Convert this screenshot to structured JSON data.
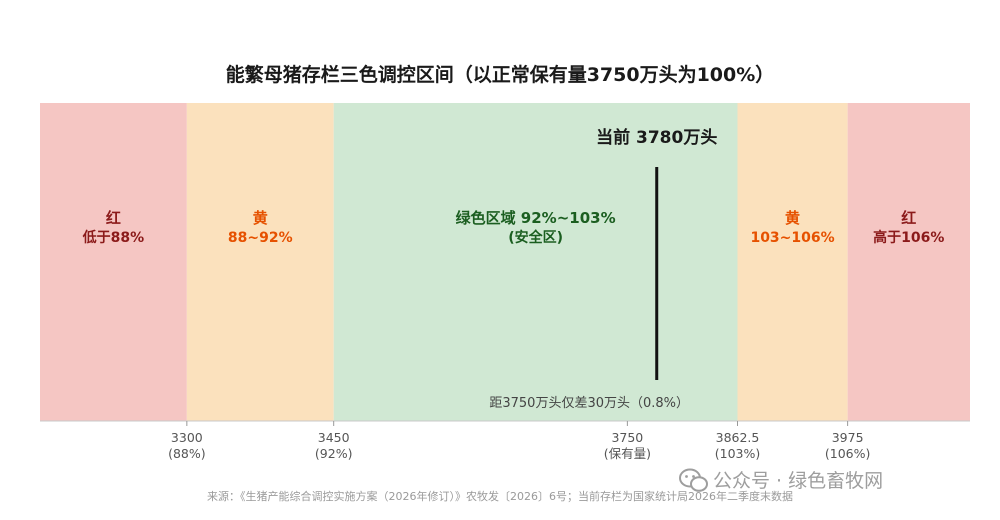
{
  "chart_data": {
    "type": "bar",
    "title": "能繁母猪存栏三色调控区间（以正常保有量3750万头为100%）",
    "xlim": [
      3150,
      4100
    ],
    "zones": [
      {
        "from": 3150,
        "to": 3300,
        "color": "#f5c6c3",
        "text_color": "#8b1a1a",
        "name": "红",
        "range": "低于88%"
      },
      {
        "from": 3300,
        "to": 3450,
        "color": "#fbe1bd",
        "text_color": "#e65100",
        "name": "黄",
        "range": "88~92%"
      },
      {
        "from": 3450,
        "to": 3862.5,
        "color": "#d0e8d3",
        "text_color": "#1b5e20",
        "name": "绿色区域 92%~103%",
        "range": "(安全区)"
      },
      {
        "from": 3862.5,
        "to": 3975,
        "color": "#fbe1bd",
        "text_color": "#e65100",
        "name": "黄",
        "range": "103~106%"
      },
      {
        "from": 3975,
        "to": 4100,
        "color": "#f5c6c3",
        "text_color": "#8b1a1a",
        "name": "红",
        "range": "高于106%"
      }
    ],
    "ticks": [
      {
        "value": 3300,
        "label": "3300",
        "sublabel": "(88%)"
      },
      {
        "value": 3450,
        "label": "3450",
        "sublabel": "(92%)"
      },
      {
        "value": 3750,
        "label": "3750",
        "sublabel": "(保有量)"
      },
      {
        "value": 3862.5,
        "label": "3862.5",
        "sublabel": "(103%)"
      },
      {
        "value": 3975,
        "label": "3975",
        "sublabel": "(106%)"
      }
    ],
    "current": {
      "value": 3780,
      "label": "当前 3780万头",
      "color": "#111111"
    },
    "note": "距3750万头仅差30万头（0.8%）"
  },
  "footer": "来源：《生猪产能综合调控实施方案（2026年修订）》农牧发〔2026〕6号；当前存栏为国家统计局2026年二季度末数据",
  "watermark": "公众号 · 绿色畜牧网"
}
